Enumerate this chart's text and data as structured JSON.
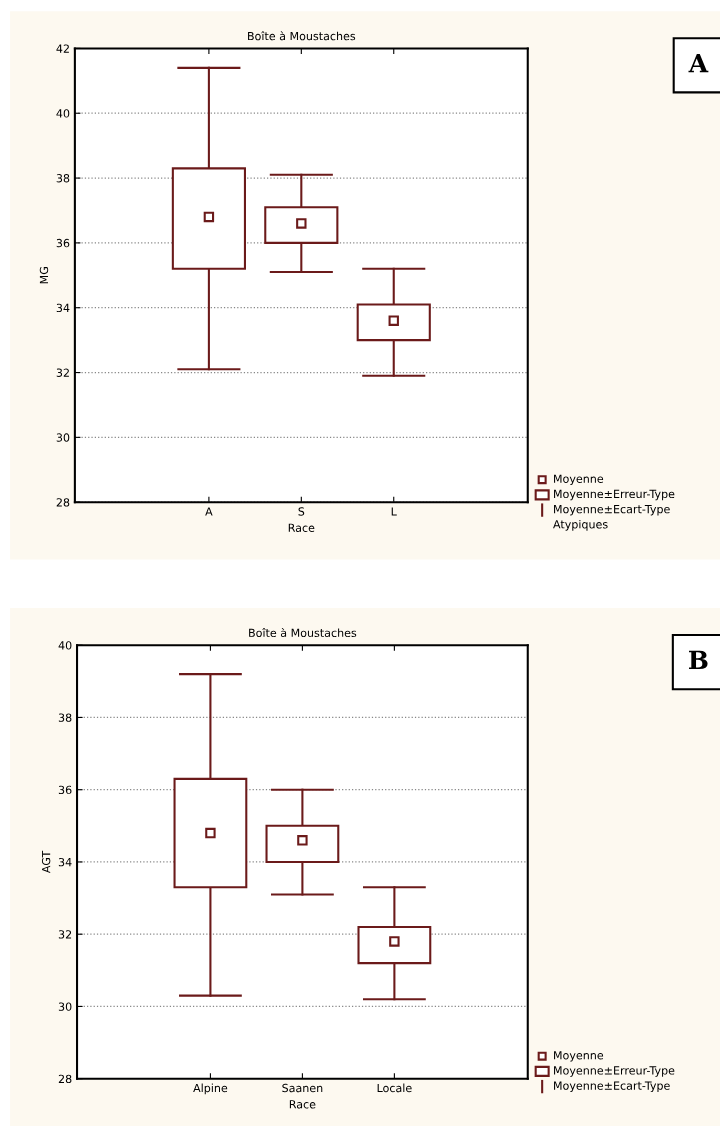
{
  "chart_data": [
    {
      "type": "box",
      "title": "Boîte à Moustaches",
      "xlabel": "Race",
      "ylabel": "MG",
      "categories": [
        "A",
        "S",
        "L"
      ],
      "color": "#6b1a1a",
      "boxes": [
        {
          "low": 32.1,
          "q1": 35.2,
          "q3": 38.3,
          "high": 41.4,
          "mean": 36.8
        },
        {
          "low": 35.1,
          "q1": 36.0,
          "q3": 37.1,
          "high": 38.1,
          "mean": 36.6
        },
        {
          "low": 31.9,
          "q1": 33.0,
          "q3": 34.1,
          "high": 35.2,
          "mean": 33.6
        }
      ],
      "ylim": [
        28,
        42
      ],
      "yticks": [
        28,
        30,
        32,
        34,
        36,
        38,
        40,
        42
      ],
      "grid": "y",
      "annotations": [
        "A",
        "Moyenne",
        "Moyenne±Erreur-Type",
        "Moyenne±Ecart-Type",
        "Atypiques"
      ]
    },
    {
      "type": "box",
      "title": "Boîte à Moustaches",
      "xlabel": "Race",
      "ylabel": "AGT",
      "categories": [
        "Alpine",
        "Saanen",
        "Locale"
      ],
      "color": "#6b1a1a",
      "boxes": [
        {
          "low": 30.3,
          "q1": 33.3,
          "q3": 36.3,
          "high": 39.2,
          "mean": 34.8
        },
        {
          "low": 33.1,
          "q1": 34.0,
          "q3": 35.0,
          "high": 36.0,
          "mean": 34.6
        },
        {
          "low": 30.2,
          "q1": 31.2,
          "q3": 32.2,
          "high": 33.3,
          "mean": 31.8
        }
      ],
      "ylim": [
        28,
        40
      ],
      "yticks": [
        28,
        30,
        32,
        34,
        36,
        38,
        40
      ],
      "grid": "y",
      "annotations": [
        "B",
        "Moyenne",
        "Moyenne±Erreur-Type",
        "Moyenne±Ecart-Type"
      ]
    }
  ]
}
